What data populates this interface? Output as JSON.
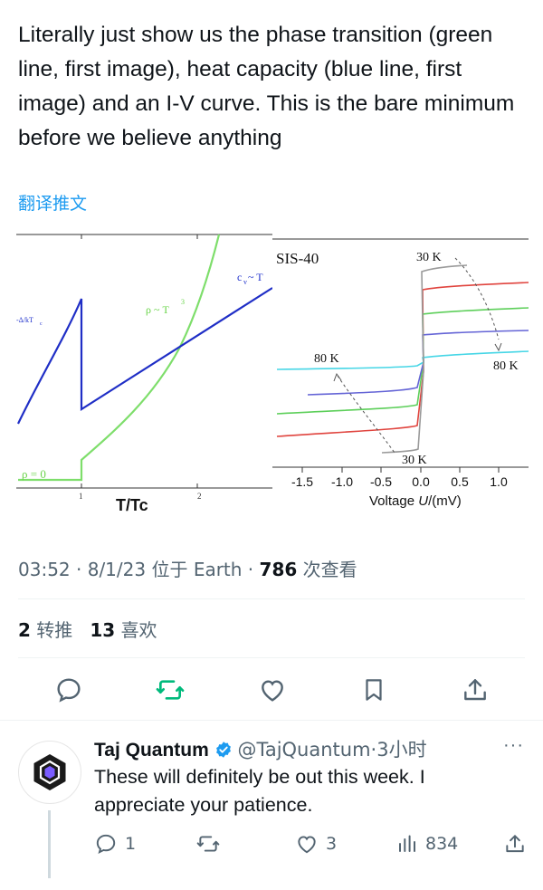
{
  "tweet": {
    "text": "Literally just show us the phase transition (green line, first image), heat capacity (blue line, first image) and an I-V curve. This is the bare minimum before we believe anything",
    "translate_label": "翻译推文",
    "time": "03:52",
    "date": "8/1/23",
    "location_prefix": "位于",
    "location": "Earth",
    "views_count": "786",
    "views_label": "次查看",
    "retweets_count": "2",
    "retweets_label": "转推",
    "likes_count": "13",
    "likes_label": "喜欢"
  },
  "figure_left": {
    "label_rho_zero": "ρ = 0",
    "label_rho_t3": "ρ ~ T",
    "label_rho_exp": "3",
    "label_cv": "c",
    "label_cv_sub": "v",
    "label_cv_tail": " ~ T",
    "label_delta": "-Δ/kT",
    "label_delta_sub": "c",
    "tick_1": "1",
    "tick_2": "2",
    "xlabel": "T/Tc"
  },
  "figure_right": {
    "title": "SIS-40",
    "label_30k_top": "30 K",
    "label_80k_left": "80 K",
    "label_80k_right": "80 K",
    "label_30k_bottom": "30 K",
    "xticks": [
      "-1.5",
      "-1.0",
      "-0.5",
      "0.0",
      "0.5",
      "1.0"
    ],
    "xlabel_prefix": "Voltage ",
    "xlabel_var": "U",
    "xlabel_unit": "/(mV)"
  },
  "reply": {
    "name": "Taj Quantum",
    "handle": "@TajQuantum",
    "time": "3小时",
    "text": "These will definitely be out this week. I appreciate your patience.",
    "replies": "1",
    "likes": "3",
    "views": "834",
    "more": "···"
  },
  "colors": {
    "accent": "#1d9bf0",
    "retweet_green": "#00ba7c",
    "text_secondary": "#536471"
  }
}
